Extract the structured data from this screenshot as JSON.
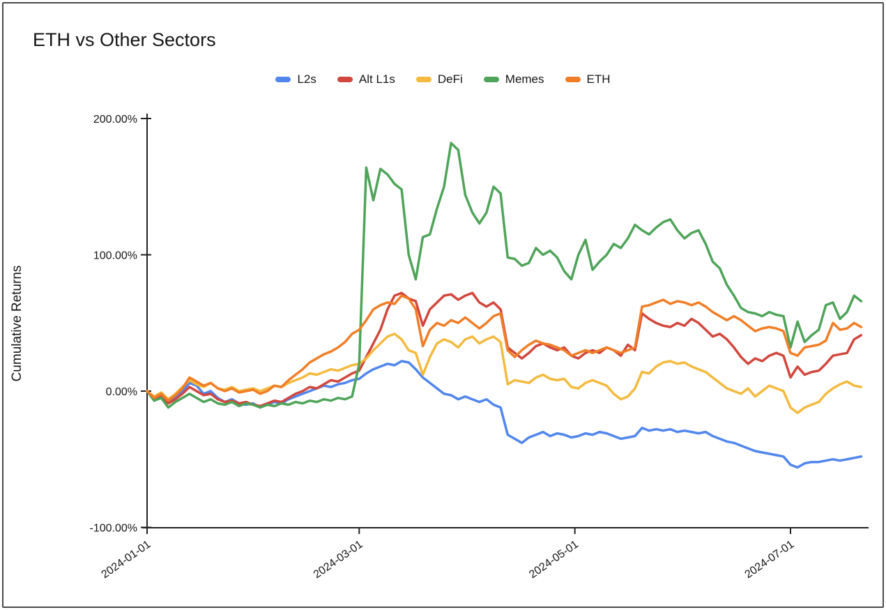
{
  "page": {
    "title": "ETH vs Other Sectors"
  },
  "chart_data": {
    "type": "line",
    "title": "ETH vs Other Sectors",
    "xlabel": "",
    "ylabel": "Cumulative Returns",
    "unit": "percent",
    "ylim": [
      -100,
      200
    ],
    "grid": false,
    "legend_position": "top-center",
    "axis_color": "#222222",
    "y_ticks": [
      {
        "value": 200,
        "label": "200.00%"
      },
      {
        "value": 100,
        "label": "100.00%"
      },
      {
        "value": 0,
        "label": "0.00%"
      },
      {
        "value": -100,
        "label": "-100.00%"
      }
    ],
    "x_ticks": [
      "2024-01-01",
      "2024-03-01",
      "2024-05-01",
      "2024-07-01"
    ],
    "x": [
      "2024-01-01",
      "2024-01-03",
      "2024-01-05",
      "2024-01-07",
      "2024-01-09",
      "2024-01-11",
      "2024-01-13",
      "2024-01-15",
      "2024-01-17",
      "2024-01-19",
      "2024-01-21",
      "2024-01-23",
      "2024-01-25",
      "2024-01-27",
      "2024-01-29",
      "2024-01-31",
      "2024-02-02",
      "2024-02-04",
      "2024-02-06",
      "2024-02-08",
      "2024-02-10",
      "2024-02-12",
      "2024-02-14",
      "2024-02-16",
      "2024-02-18",
      "2024-02-20",
      "2024-02-22",
      "2024-02-24",
      "2024-02-26",
      "2024-02-28",
      "2024-03-01",
      "2024-03-03",
      "2024-03-05",
      "2024-03-07",
      "2024-03-09",
      "2024-03-11",
      "2024-03-13",
      "2024-03-15",
      "2024-03-17",
      "2024-03-19",
      "2024-03-21",
      "2024-03-23",
      "2024-03-25",
      "2024-03-27",
      "2024-03-29",
      "2024-03-31",
      "2024-04-02",
      "2024-04-04",
      "2024-04-06",
      "2024-04-08",
      "2024-04-10",
      "2024-04-12",
      "2024-04-14",
      "2024-04-16",
      "2024-04-18",
      "2024-04-20",
      "2024-04-22",
      "2024-04-24",
      "2024-04-26",
      "2024-04-28",
      "2024-04-30",
      "2024-05-02",
      "2024-05-04",
      "2024-05-06",
      "2024-05-08",
      "2024-05-10",
      "2024-05-12",
      "2024-05-14",
      "2024-05-16",
      "2024-05-18",
      "2024-05-20",
      "2024-05-22",
      "2024-05-24",
      "2024-05-26",
      "2024-05-28",
      "2024-05-30",
      "2024-06-01",
      "2024-06-03",
      "2024-06-05",
      "2024-06-07",
      "2024-06-09",
      "2024-06-11",
      "2024-06-13",
      "2024-06-15",
      "2024-06-17",
      "2024-06-19",
      "2024-06-21",
      "2024-06-23",
      "2024-06-25",
      "2024-06-27",
      "2024-06-29",
      "2024-07-01",
      "2024-07-03",
      "2024-07-05",
      "2024-07-07",
      "2024-07-09",
      "2024-07-11",
      "2024-07-13",
      "2024-07-15",
      "2024-07-17",
      "2024-07-19",
      "2024-07-21"
    ],
    "series": [
      {
        "name": "L2s",
        "color": "#5186EC",
        "values": [
          0,
          -5,
          -3,
          -8,
          -5,
          0,
          6,
          4,
          -2,
          0,
          -5,
          -8,
          -6,
          -9,
          -10,
          -9,
          -12,
          -10,
          -8,
          -9,
          -6,
          -4,
          -2,
          0,
          2,
          4,
          3,
          5,
          6,
          8,
          9,
          13,
          16,
          18,
          20,
          19,
          22,
          21,
          16,
          10,
          6,
          2,
          -2,
          -3,
          -6,
          -4,
          -6,
          -8,
          -6,
          -10,
          -12,
          -32,
          -35,
          -38,
          -34,
          -32,
          -30,
          -33,
          -31,
          -32,
          -34,
          -33,
          -31,
          -32,
          -30,
          -31,
          -33,
          -35,
          -34,
          -33,
          -27,
          -29,
          -28,
          -29,
          -28,
          -30,
          -29,
          -30,
          -31,
          -30,
          -33,
          -35,
          -37,
          -38,
          -40,
          -42,
          -44,
          -45,
          -46,
          -47,
          -48,
          -54,
          -56,
          -53,
          -52,
          -52,
          -51,
          -50,
          -51,
          -50,
          -49,
          -48
        ]
      },
      {
        "name": "Alt L1s",
        "color": "#D1473D",
        "values": [
          0,
          -6,
          -4,
          -9,
          -6,
          -2,
          3,
          0,
          -3,
          -2,
          -6,
          -8,
          -7,
          -9,
          -8,
          -10,
          -11,
          -9,
          -7,
          -8,
          -5,
          -2,
          0,
          3,
          2,
          5,
          8,
          7,
          10,
          13,
          15,
          25,
          35,
          45,
          60,
          70,
          72,
          68,
          66,
          48,
          60,
          65,
          70,
          71,
          67,
          70,
          72,
          65,
          62,
          65,
          60,
          32,
          28,
          24,
          28,
          33,
          35,
          32,
          30,
          32,
          26,
          24,
          28,
          30,
          28,
          32,
          30,
          26,
          34,
          30,
          57,
          53,
          50,
          48,
          47,
          50,
          48,
          53,
          50,
          45,
          40,
          42,
          38,
          32,
          25,
          20,
          24,
          22,
          26,
          28,
          26,
          10,
          18,
          12,
          14,
          15,
          20,
          26,
          27,
          28,
          38,
          41
        ]
      },
      {
        "name": "DeFi",
        "color": "#F3BA3F",
        "values": [
          0,
          -4,
          -1,
          -6,
          -2,
          3,
          8,
          5,
          3,
          6,
          2,
          1,
          3,
          0,
          1,
          2,
          0,
          2,
          4,
          3,
          6,
          8,
          10,
          13,
          12,
          14,
          16,
          15,
          17,
          19,
          20,
          24,
          30,
          35,
          40,
          42,
          38,
          30,
          28,
          12,
          25,
          35,
          38,
          36,
          32,
          38,
          40,
          35,
          38,
          40,
          36,
          5,
          8,
          7,
          6,
          10,
          12,
          9,
          8,
          9,
          3,
          2,
          6,
          8,
          6,
          4,
          -2,
          -6,
          -4,
          2,
          14,
          13,
          18,
          21,
          22,
          20,
          21,
          18,
          16,
          14,
          10,
          6,
          2,
          0,
          -2,
          2,
          -4,
          0,
          4,
          2,
          0,
          -12,
          -16,
          -12,
          -10,
          -8,
          -2,
          2,
          5,
          7,
          4,
          3
        ]
      },
      {
        "name": "Memes",
        "color": "#4FA45A",
        "values": [
          0,
          -7,
          -5,
          -12,
          -8,
          -5,
          -2,
          -5,
          -8,
          -6,
          -9,
          -10,
          -8,
          -11,
          -9,
          -10,
          -12,
          -10,
          -11,
          -9,
          -10,
          -8,
          -9,
          -7,
          -8,
          -6,
          -7,
          -5,
          -6,
          -4,
          20,
          164,
          140,
          163,
          159,
          152,
          148,
          100,
          82,
          113,
          115,
          134,
          150,
          182,
          177,
          144,
          131,
          123,
          131,
          150,
          145,
          98,
          97,
          92,
          94,
          105,
          100,
          103,
          98,
          88,
          82,
          100,
          111,
          89,
          95,
          100,
          108,
          105,
          112,
          122,
          118,
          115,
          120,
          124,
          126,
          118,
          112,
          116,
          118,
          108,
          95,
          90,
          78,
          70,
          61,
          58,
          57,
          55,
          58,
          56,
          55,
          32,
          51,
          36,
          41,
          45,
          63,
          65,
          53,
          58,
          70,
          66
        ]
      },
      {
        "name": "ETH",
        "color": "#F07E27",
        "values": [
          0,
          -5,
          -2,
          -7,
          -3,
          2,
          10,
          7,
          4,
          6,
          2,
          0,
          2,
          -1,
          0,
          1,
          -2,
          0,
          4,
          3,
          8,
          12,
          16,
          21,
          24,
          27,
          29,
          32,
          36,
          42,
          45,
          52,
          60,
          63,
          65,
          64,
          70,
          68,
          60,
          33,
          45,
          50,
          48,
          52,
          50,
          54,
          50,
          46,
          50,
          55,
          57,
          30,
          25,
          30,
          34,
          37,
          35,
          34,
          32,
          30,
          26,
          28,
          30,
          28,
          30,
          32,
          30,
          28,
          30,
          32,
          62,
          63,
          65,
          67,
          64,
          66,
          65,
          63,
          65,
          62,
          58,
          55,
          52,
          55,
          52,
          48,
          44,
          46,
          47,
          46,
          44,
          28,
          26,
          32,
          33,
          34,
          37,
          50,
          45,
          46,
          50,
          47
        ]
      }
    ]
  }
}
